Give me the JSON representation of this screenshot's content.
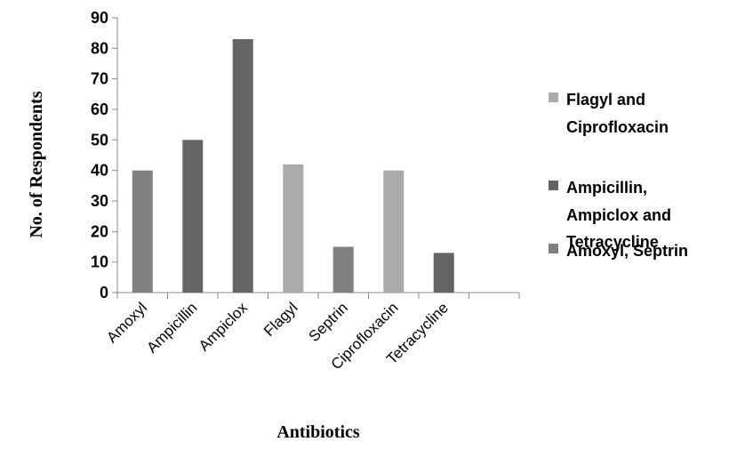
{
  "chart_data": {
    "type": "bar",
    "title": "",
    "xlabel": "Antibiotics",
    "ylabel": "No. of Respondents",
    "ylim": [
      0,
      90
    ],
    "yticks": [
      0,
      10,
      20,
      30,
      40,
      50,
      60,
      70,
      80,
      90
    ],
    "grid": false,
    "legend_position": "right",
    "categories": [
      "Amoxyl",
      "Ampicillin",
      "Ampiclox",
      "Flagyl",
      "Septrin",
      "Ciprofloxacin",
      "Tetracycline",
      ""
    ],
    "bars": [
      {
        "category": "Amoxyl",
        "value": 40,
        "series": 2
      },
      {
        "category": "Ampicillin",
        "value": 50,
        "series": 1
      },
      {
        "category": "Ampiclox",
        "value": 83,
        "series": 1
      },
      {
        "category": "Flagyl",
        "value": 42,
        "series": 0
      },
      {
        "category": "Septrin",
        "value": 15,
        "series": 2
      },
      {
        "category": "Ciprofloxacin",
        "value": 40,
        "series": 0
      },
      {
        "category": "Tetracycline",
        "value": 13,
        "series": 1
      }
    ],
    "series": [
      {
        "name_lines": [
          "Flagyl and",
          "Ciprofloxacin"
        ],
        "color": "#ababab"
      },
      {
        "name_lines": [
          "Ampicillin,",
          "Ampiclox and",
          "Tetracycline"
        ],
        "color": "#646464"
      },
      {
        "name_lines": [
          "Amoxyl, Septrin"
        ],
        "color": "#808080"
      }
    ]
  }
}
